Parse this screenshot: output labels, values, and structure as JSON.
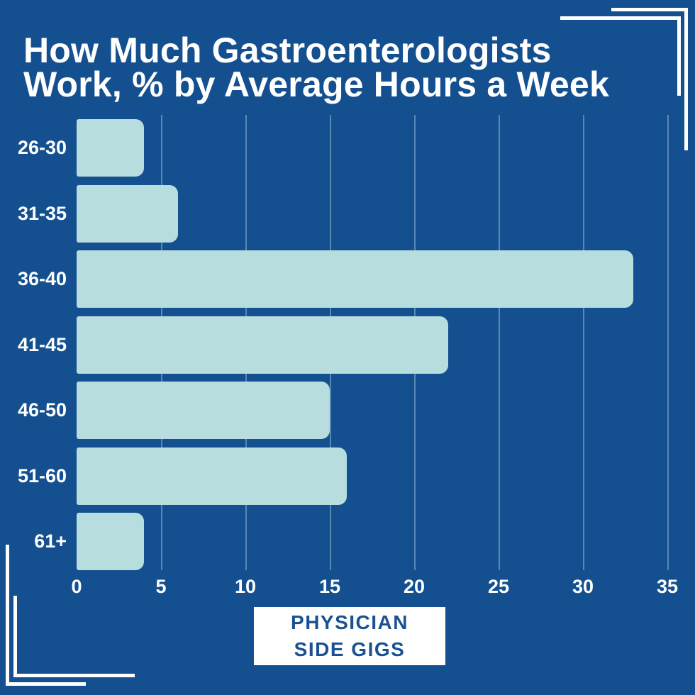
{
  "page": {
    "background_color": "#145090"
  },
  "title": {
    "line1": "How Much Gastroenterologists",
    "line2": "Work, % by Average Hours a Week",
    "color": "#ffffff"
  },
  "logo": {
    "line1": "PHYSICIAN",
    "line2": "SIDE GIGS",
    "text_color": "#1a5191",
    "background_color": "#ffffff"
  },
  "chart_data": {
    "type": "bar",
    "orientation": "horizontal",
    "title": "How Much Gastroenterologists Work, % by Average Hours a Week",
    "categories": [
      "26-30",
      "31-35",
      "36-40",
      "41-45",
      "46-50",
      "51-60",
      "61+"
    ],
    "values": [
      4,
      6,
      33,
      22,
      15,
      16,
      4
    ],
    "unit": "%",
    "xlim": [
      0,
      35
    ],
    "xticks": [
      0,
      5,
      10,
      15,
      20,
      25,
      30,
      35
    ],
    "grid": true,
    "legend": false,
    "bar_color": "#b7dddf",
    "gridline_color": "rgba(220,237,248,0.35)",
    "label_color": "#ffffff"
  }
}
